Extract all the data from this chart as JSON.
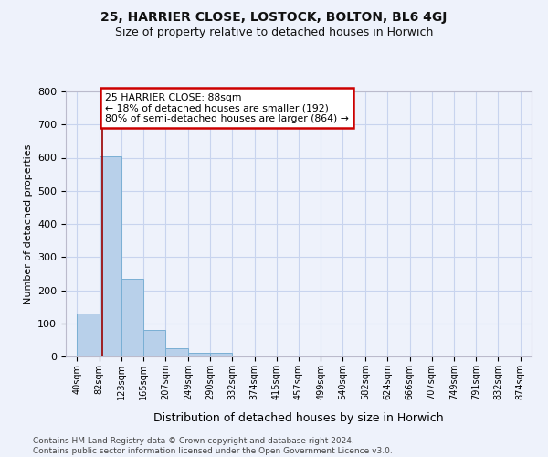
{
  "title1": "25, HARRIER CLOSE, LOSTOCK, BOLTON, BL6 4GJ",
  "title2": "Size of property relative to detached houses in Horwich",
  "xlabel": "Distribution of detached houses by size in Horwich",
  "ylabel": "Number of detached properties",
  "footer1": "Contains HM Land Registry data © Crown copyright and database right 2024.",
  "footer2": "Contains public sector information licensed under the Open Government Licence v3.0.",
  "bin_labels": [
    "40sqm",
    "82sqm",
    "123sqm",
    "165sqm",
    "207sqm",
    "249sqm",
    "290sqm",
    "332sqm",
    "374sqm",
    "415sqm",
    "457sqm",
    "499sqm",
    "540sqm",
    "582sqm",
    "624sqm",
    "666sqm",
    "707sqm",
    "749sqm",
    "791sqm",
    "832sqm",
    "874sqm"
  ],
  "bin_edges": [
    40,
    82,
    123,
    165,
    207,
    249,
    290,
    332,
    374,
    415,
    457,
    499,
    540,
    582,
    624,
    666,
    707,
    749,
    791,
    832,
    874
  ],
  "bar_heights": [
    130,
    605,
    235,
    80,
    25,
    12,
    10,
    0,
    0,
    0,
    0,
    0,
    0,
    0,
    0,
    0,
    0,
    0,
    0,
    0
  ],
  "bar_color": "#b8d0ea",
  "bar_edge_color": "#7aafd4",
  "vline_color": "#990000",
  "vline_x": 88,
  "annotation_text": "25 HARRIER CLOSE: 88sqm\n← 18% of detached houses are smaller (192)\n80% of semi-detached houses are larger (864) →",
  "annotation_box_color": "#ffffff",
  "annotation_box_edge": "#cc0000",
  "ylim": [
    0,
    800
  ],
  "yticks": [
    0,
    100,
    200,
    300,
    400,
    500,
    600,
    700,
    800
  ],
  "background_color": "#eef2fb",
  "grid_color": "#c8d4ee",
  "title1_fontsize": 10,
  "title2_fontsize": 9
}
